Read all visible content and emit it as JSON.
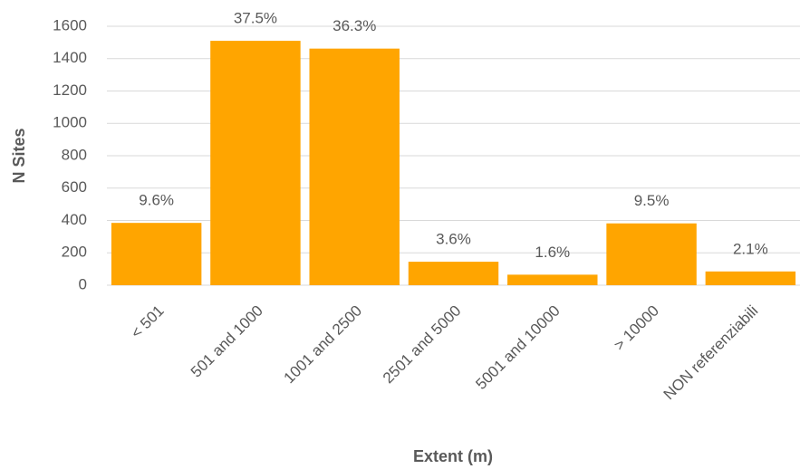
{
  "chart_data": {
    "type": "bar",
    "x_label": "Extent (m)",
    "y_label": "N Sites",
    "categories": [
      "< 501",
      "501 and 1000",
      "1001 and 2500",
      "2501 and 5000",
      "5001 and 10000",
      "> 10000",
      "NON referenziabili"
    ],
    "values": [
      385,
      1510,
      1462,
      145,
      65,
      382,
      85
    ],
    "percent_labels": [
      "9.6%",
      "37.5%",
      "36.3%",
      "3.6%",
      "1.6%",
      "9.5%",
      "2.1%"
    ],
    "color": "#ffa500",
    "ylim": [
      0,
      1600
    ],
    "yticks": [
      0,
      200,
      400,
      600,
      800,
      1000,
      1200,
      1400,
      1600
    ],
    "grid": true
  }
}
